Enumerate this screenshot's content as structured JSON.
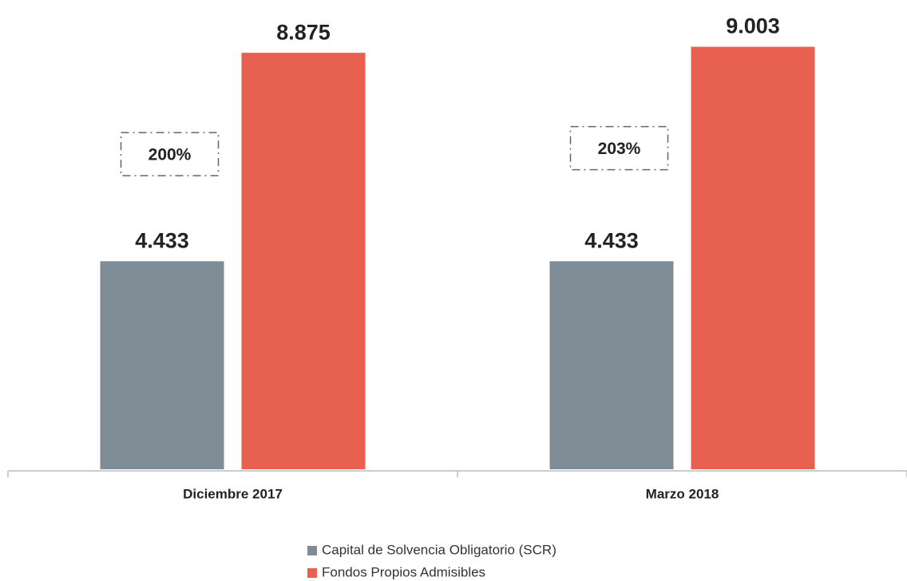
{
  "chart_data": {
    "type": "bar",
    "categories": [
      "Diciembre 2017",
      "Marzo 2018"
    ],
    "series": [
      {
        "name": "Capital de Solvencia Obligatorio (SCR)",
        "color": "#7f8b95",
        "values": [
          4.433,
          4.433
        ]
      },
      {
        "name": "Fondos Propios Admisibles",
        "color": "#e8604f",
        "values": [
          8.875,
          9.003
        ]
      }
    ],
    "annotations": [
      "200%",
      "203%"
    ],
    "ylim": [
      0,
      10
    ],
    "legend": "bottom"
  }
}
